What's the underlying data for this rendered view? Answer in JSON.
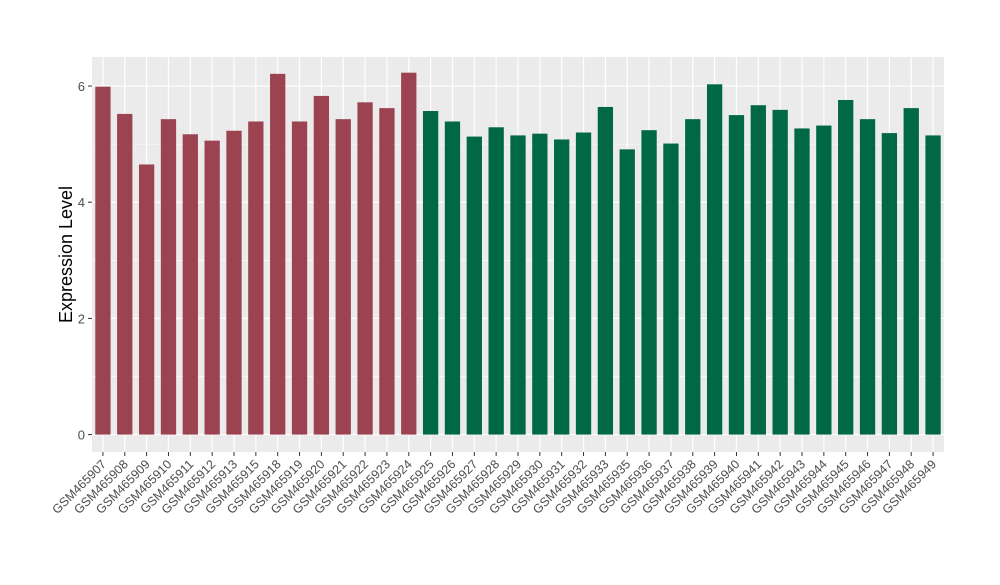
{
  "chart_data": {
    "type": "bar",
    "title": "",
    "xlabel": "",
    "ylabel": "Expression Level",
    "ylim": [
      -0.3,
      6.5
    ],
    "yticks": [
      0,
      2,
      4,
      6
    ],
    "grid": true,
    "colors": {
      "group_a": "#9b4350",
      "group_b": "#006845",
      "panel_bg": "#ebebeb",
      "grid": "#ffffff"
    },
    "categories": [
      "GSM465907",
      "GSM465908",
      "GSM465909",
      "GSM465910",
      "GSM465911",
      "GSM465912",
      "GSM465913",
      "GSM465915",
      "GSM465918",
      "GSM465919",
      "GSM465920",
      "GSM465921",
      "GSM465922",
      "GSM465923",
      "GSM465924",
      "GSM465925",
      "GSM465926",
      "GSM465927",
      "GSM465928",
      "GSM465929",
      "GSM465930",
      "GSM465931",
      "GSM465932",
      "GSM465933",
      "GSM465935",
      "GSM465936",
      "GSM465937",
      "GSM465938",
      "GSM465939",
      "GSM465940",
      "GSM465941",
      "GSM465942",
      "GSM465943",
      "GSM465944",
      "GSM465945",
      "GSM465946",
      "GSM465947",
      "GSM465948",
      "GSM465949"
    ],
    "values": [
      5.99,
      5.52,
      4.65,
      5.43,
      5.17,
      5.06,
      5.23,
      5.39,
      6.21,
      5.39,
      5.83,
      5.43,
      5.72,
      5.62,
      6.23,
      5.57,
      5.39,
      5.13,
      5.29,
      5.15,
      5.18,
      5.08,
      5.2,
      5.64,
      4.91,
      5.24,
      5.01,
      5.43,
      6.03,
      5.5,
      5.67,
      5.59,
      5.27,
      5.32,
      5.76,
      5.43,
      5.19,
      5.62,
      5.15
    ],
    "groups": [
      "a",
      "a",
      "a",
      "a",
      "a",
      "a",
      "a",
      "a",
      "a",
      "a",
      "a",
      "a",
      "a",
      "a",
      "a",
      "b",
      "b",
      "b",
      "b",
      "b",
      "b",
      "b",
      "b",
      "b",
      "b",
      "b",
      "b",
      "b",
      "b",
      "b",
      "b",
      "b",
      "b",
      "b",
      "b",
      "b",
      "b",
      "b",
      "b"
    ]
  }
}
